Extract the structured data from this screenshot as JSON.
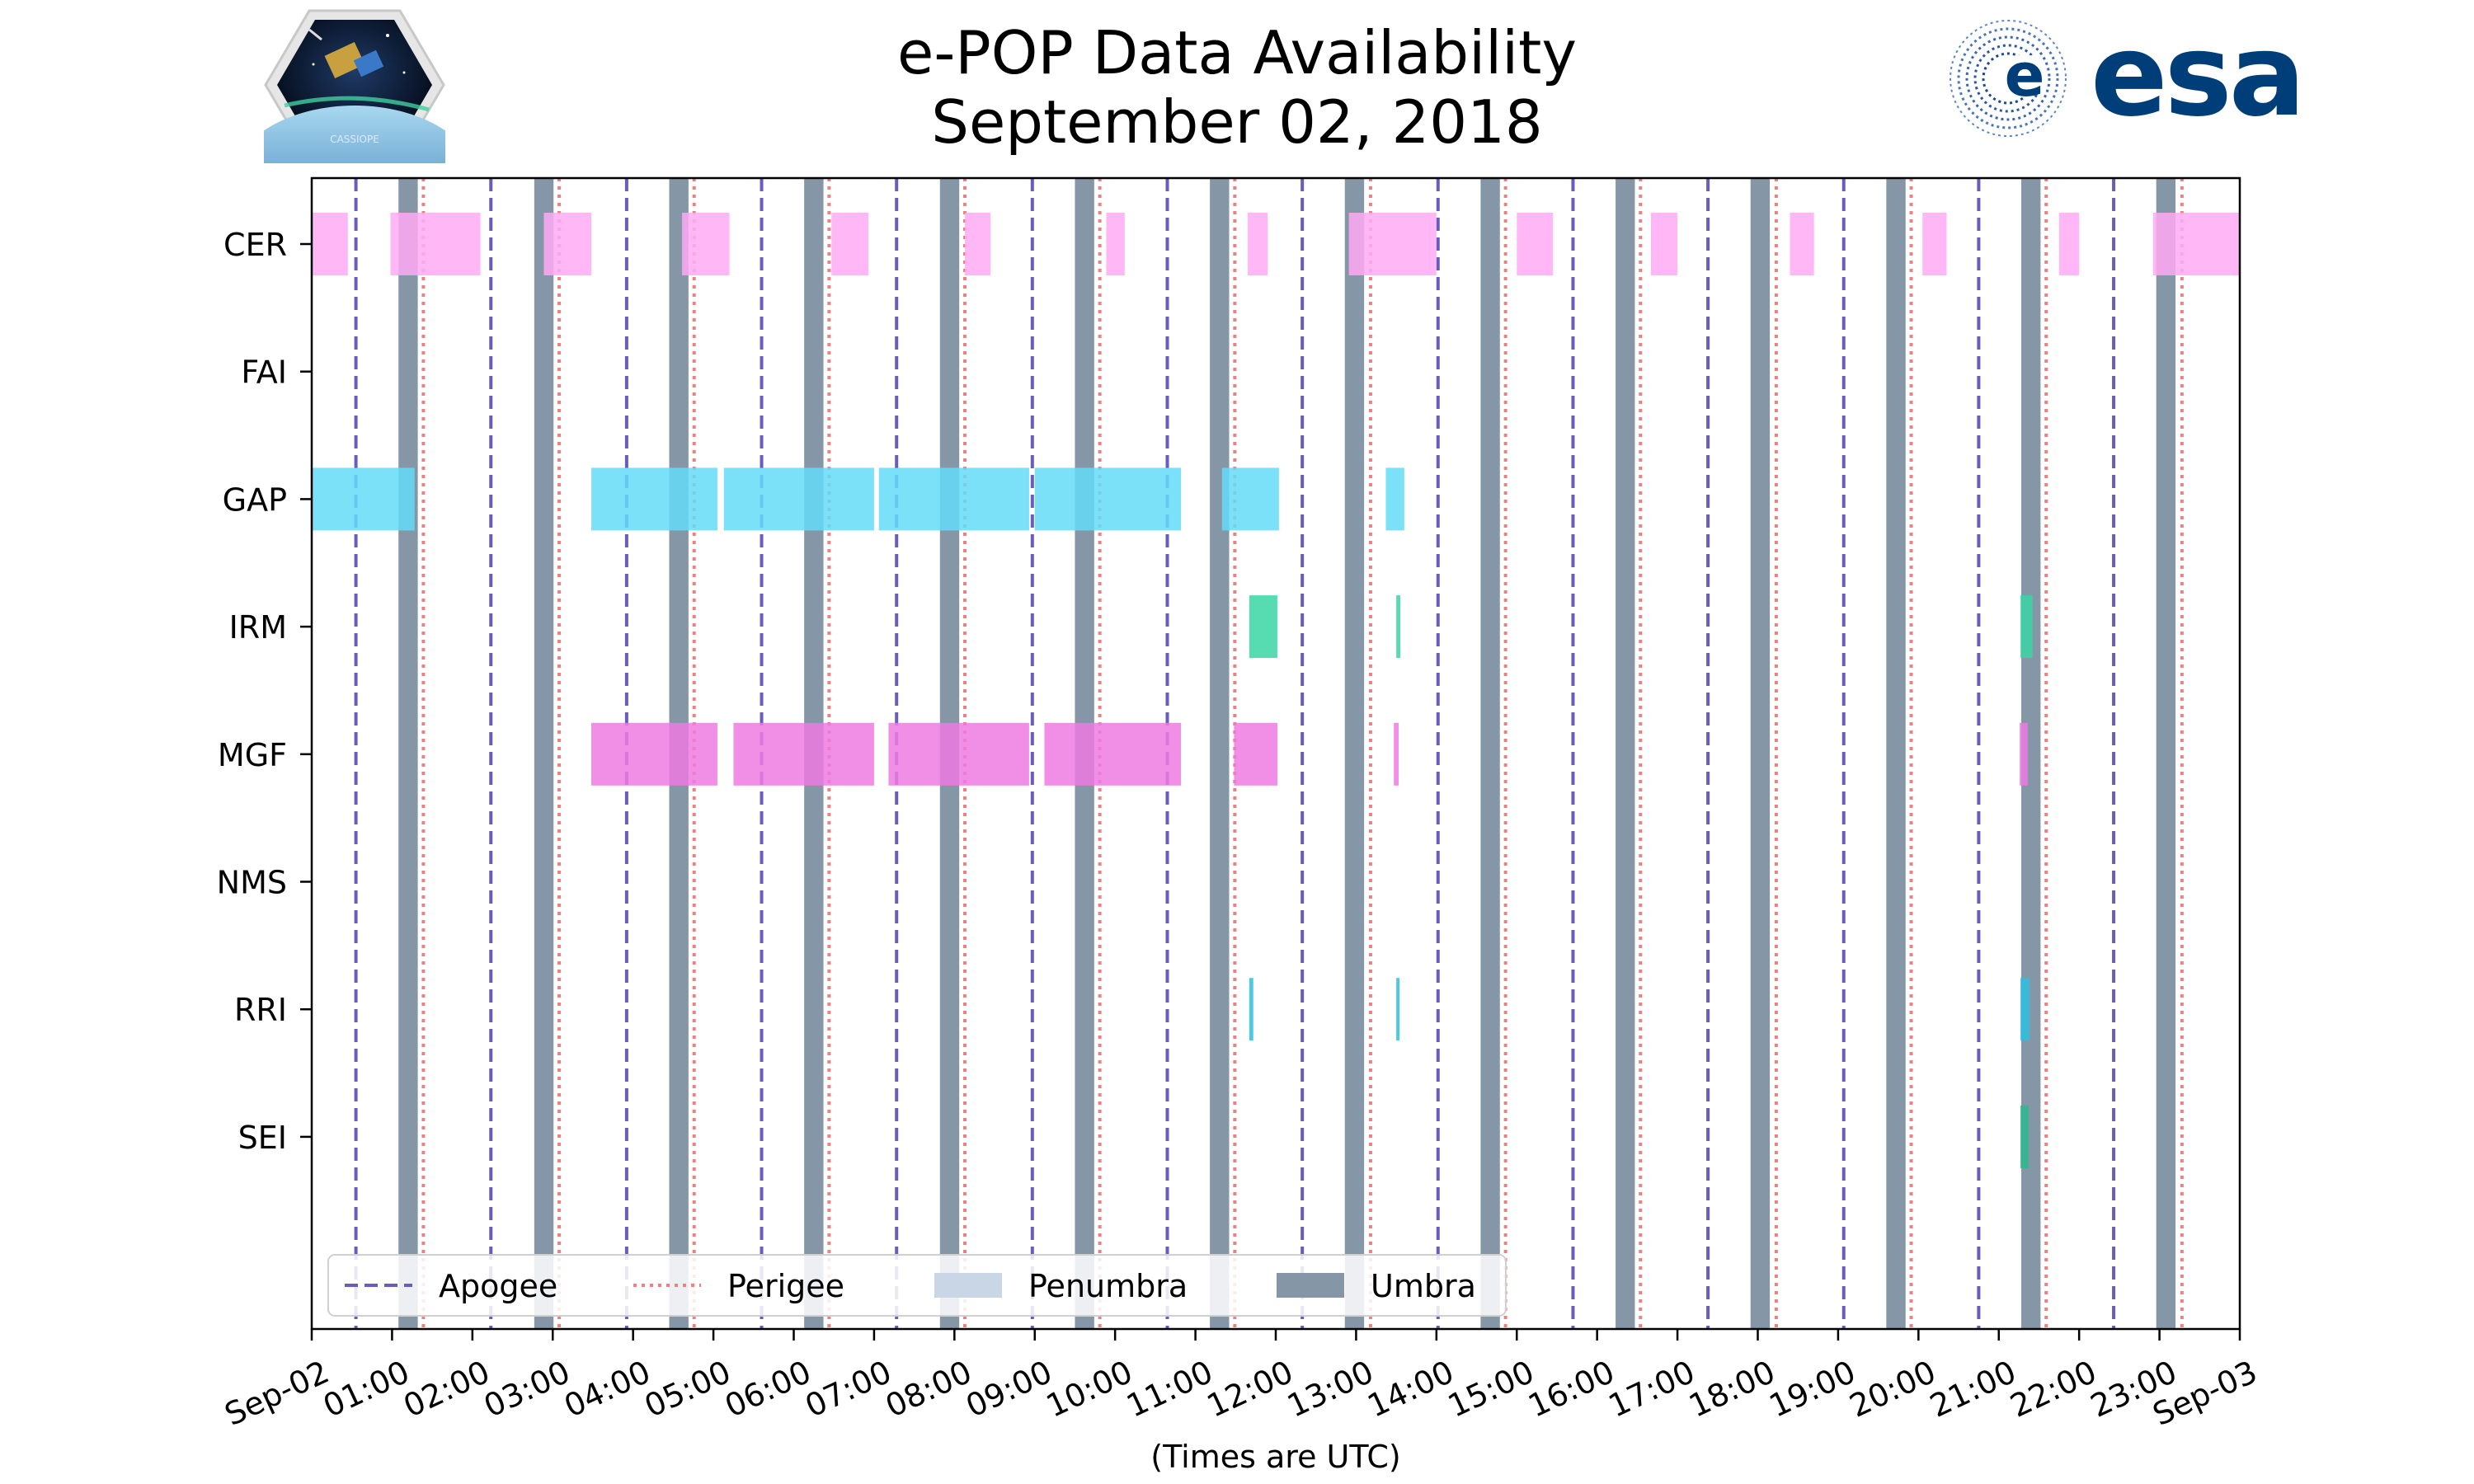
{
  "title": {
    "line1": "e-POP Data Availability",
    "line2": "September 02, 2018"
  },
  "logos": {
    "left": {
      "icon": "cassiope-logo",
      "text": "CASSIOPE"
    },
    "right": {
      "icon": "esa-logo",
      "text": "esa"
    }
  },
  "chart_data": {
    "type": "timeline",
    "xlabel": "(Times are UTC)",
    "x_range_hours": [
      0,
      24
    ],
    "x_tick_labels": [
      "Sep-02",
      "01:00",
      "02:00",
      "03:00",
      "04:00",
      "05:00",
      "06:00",
      "07:00",
      "08:00",
      "09:00",
      "10:00",
      "11:00",
      "12:00",
      "13:00",
      "14:00",
      "15:00",
      "16:00",
      "17:00",
      "18:00",
      "19:00",
      "20:00",
      "21:00",
      "22:00",
      "23:00",
      "Sep-03"
    ],
    "instruments": [
      "CER",
      "FAI",
      "GAP",
      "IRM",
      "MGF",
      "NMS",
      "RRI",
      "SEI"
    ],
    "colors": {
      "CER": "#ffaaf5",
      "GAP": "#64dcf8",
      "IRM": "#3ad6a4",
      "MGF": "#ee7ae2",
      "RRI": "#2ec0e2",
      "SEI": "#2bb88c",
      "apogee": "#6a5cbe",
      "perigee": "#f08080",
      "penumbra": "#c8d6e6",
      "umbra": "#8596a6"
    },
    "apogee_hours": [
      0.55,
      2.23,
      3.92,
      5.6,
      7.28,
      8.97,
      10.65,
      12.33,
      14.02,
      15.7,
      17.38,
      19.07,
      20.75,
      22.43
    ],
    "perigee_hours": [
      1.39,
      3.08,
      4.76,
      6.44,
      8.13,
      9.81,
      11.49,
      13.18,
      14.86,
      16.54,
      18.23,
      19.91,
      21.59,
      23.28
    ],
    "umbra_intervals": [
      [
        1.08,
        1.32
      ],
      [
        2.77,
        3.01
      ],
      [
        4.45,
        4.69
      ],
      [
        6.13,
        6.37
      ],
      [
        7.82,
        8.06
      ],
      [
        9.5,
        9.74
      ],
      [
        11.18,
        11.42
      ],
      [
        12.86,
        13.1
      ],
      [
        14.55,
        14.79
      ],
      [
        16.23,
        16.47
      ],
      [
        17.91,
        18.15
      ],
      [
        19.6,
        19.84
      ],
      [
        21.28,
        21.52
      ],
      [
        22.96,
        23.2
      ]
    ],
    "data_bars": {
      "CER": [
        [
          0.0,
          0.45
        ],
        [
          0.98,
          2.1
        ],
        [
          2.89,
          3.48
        ],
        [
          4.61,
          5.2
        ],
        [
          6.47,
          6.93
        ],
        [
          8.13,
          8.45
        ],
        [
          9.89,
          10.12
        ],
        [
          11.65,
          11.9
        ],
        [
          12.91,
          14.0
        ],
        [
          15.0,
          15.45
        ],
        [
          16.67,
          17.0
        ],
        [
          18.4,
          18.7
        ],
        [
          20.05,
          20.35
        ],
        [
          21.75,
          22.0
        ],
        [
          22.92,
          24.0
        ]
      ],
      "FAI": [],
      "GAP": [
        [
          0.0,
          1.28
        ],
        [
          3.48,
          5.05
        ],
        [
          5.13,
          7.0
        ],
        [
          7.06,
          8.93
        ],
        [
          9.0,
          10.82
        ],
        [
          11.33,
          12.04
        ],
        [
          13.37,
          13.6
        ]
      ],
      "IRM": [
        [
          11.67,
          12.02
        ],
        [
          13.5,
          13.55
        ],
        [
          21.27,
          21.42
        ]
      ],
      "MGF": [
        [
          3.48,
          5.05
        ],
        [
          5.25,
          7.0
        ],
        [
          7.18,
          8.93
        ],
        [
          9.12,
          10.82
        ],
        [
          11.48,
          12.02
        ],
        [
          13.47,
          13.53
        ],
        [
          21.26,
          21.36
        ]
      ],
      "NMS": [],
      "RRI": [
        [
          11.67,
          11.72
        ],
        [
          13.5,
          13.54
        ],
        [
          21.27,
          21.38
        ]
      ],
      "SEI": [
        [
          21.27,
          21.37
        ]
      ]
    },
    "legend": {
      "placement": "lower-left",
      "entries": [
        "Apogee",
        "Perigee",
        "Penumbra",
        "Umbra"
      ]
    }
  }
}
